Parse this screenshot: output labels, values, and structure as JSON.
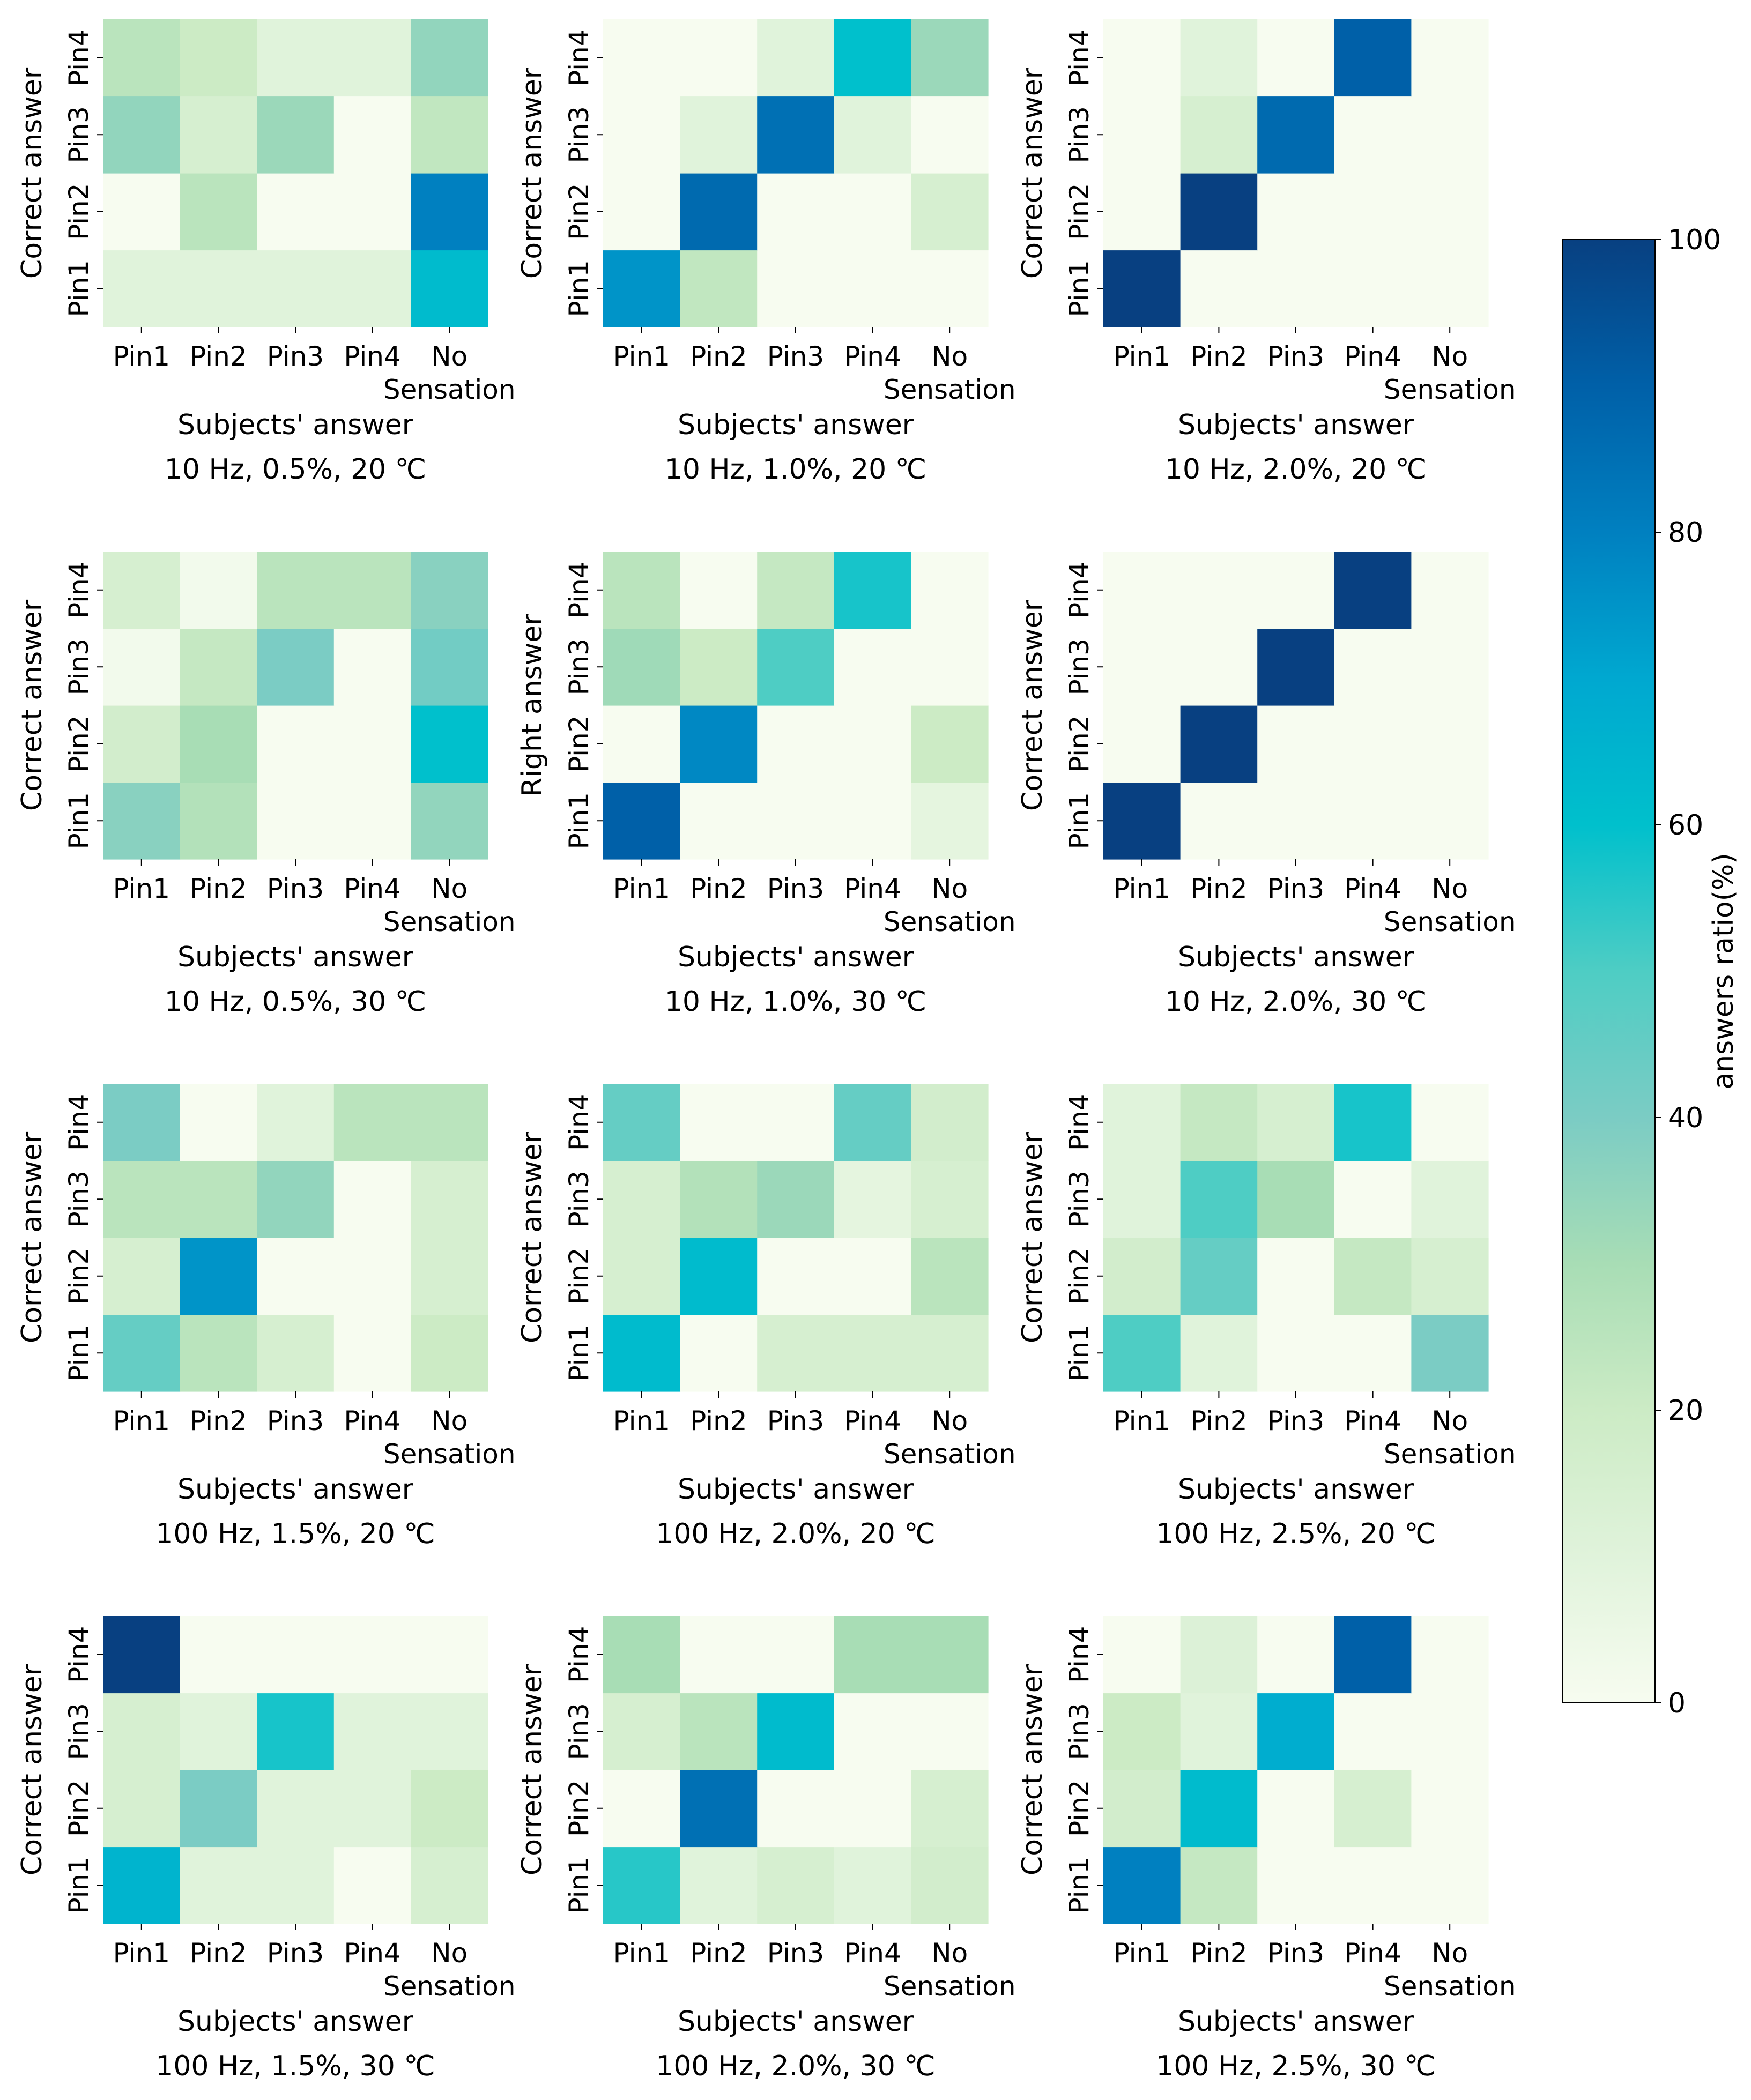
{
  "chart_data": {
    "type": "heatmap",
    "value_range": [
      0,
      100
    ],
    "colorscale": [
      "#f7fcf0",
      "#e0f3db",
      "#ccebc5",
      "#a8ddb5",
      "#7bccc4",
      "#4ecdc4",
      "#00c0cc",
      "#00a8d0",
      "#0080c0",
      "#0060a8",
      "#084081"
    ],
    "colorbar": {
      "label": "answers ratio(%)",
      "ticks": [
        0,
        20,
        40,
        60,
        80,
        100
      ]
    },
    "x_categories": [
      "Pin1",
      "Pin2",
      "Pin3",
      "Pin4",
      "No\nSensation"
    ],
    "y_categories": [
      "Pin1",
      "Pin2",
      "Pin3",
      "Pin4"
    ],
    "panels": [
      {
        "title": "10 Hz, 0.5%, 20 ℃",
        "xlabel": "Subjects' answer",
        "ylabel": "Correct answer",
        "values": [
          [
            10,
            10,
            10,
            10,
            62
          ],
          [
            0,
            25,
            0,
            0,
            80
          ],
          [
            35,
            15,
            33,
            0,
            23
          ],
          [
            25,
            20,
            10,
            10,
            35
          ]
        ]
      },
      {
        "title": "10 Hz, 1.0%, 20 ℃",
        "xlabel": "Subjects' answer",
        "ylabel": "Correct answer",
        "values": [
          [
            75,
            23,
            0,
            0,
            0
          ],
          [
            0,
            87,
            0,
            0,
            15
          ],
          [
            0,
            10,
            85,
            10,
            0
          ],
          [
            0,
            0,
            10,
            60,
            33
          ]
        ]
      },
      {
        "title": "10 Hz, 2.0%, 20 ℃",
        "xlabel": "Subjects' answer",
        "ylabel": "Correct answer",
        "values": [
          [
            100,
            0,
            0,
            0,
            0
          ],
          [
            0,
            100,
            0,
            0,
            0
          ],
          [
            0,
            15,
            87,
            0,
            0
          ],
          [
            0,
            10,
            0,
            90,
            0
          ]
        ]
      },
      {
        "title": "10 Hz, 0.5%, 30 ℃",
        "xlabel": "Subjects' answer",
        "ylabel": "Correct answer",
        "values": [
          [
            37,
            27,
            0,
            0,
            35
          ],
          [
            17,
            30,
            0,
            0,
            60
          ],
          [
            2,
            22,
            40,
            0,
            42
          ],
          [
            15,
            2,
            25,
            25,
            37
          ]
        ]
      },
      {
        "title": "10 Hz, 1.0%, 30 ℃",
        "xlabel": "Subjects' answer",
        "ylabel": "Right answer",
        "values": [
          [
            90,
            0,
            0,
            0,
            8
          ],
          [
            0,
            78,
            0,
            0,
            20
          ],
          [
            32,
            20,
            50,
            0,
            0
          ],
          [
            25,
            0,
            22,
            57,
            0
          ]
        ]
      },
      {
        "title": "10 Hz, 2.0%, 30 ℃",
        "xlabel": "Subjects' answer",
        "ylabel": "Correct answer",
        "values": [
          [
            100,
            0,
            0,
            0,
            0
          ],
          [
            0,
            100,
            0,
            0,
            0
          ],
          [
            0,
            0,
            100,
            0,
            0
          ],
          [
            0,
            0,
            0,
            100,
            0
          ]
        ]
      },
      {
        "title": "100 Hz, 1.5%, 20 ℃",
        "xlabel": "Subjects' answer",
        "ylabel": "Correct answer",
        "values": [
          [
            45,
            25,
            15,
            0,
            20
          ],
          [
            15,
            75,
            0,
            0,
            15
          ],
          [
            25,
            25,
            35,
            0,
            15
          ],
          [
            40,
            0,
            10,
            25,
            25
          ]
        ]
      },
      {
        "title": "100 Hz, 2.0%, 20 ℃",
        "xlabel": "Subjects' answer",
        "ylabel": "Correct answer",
        "values": [
          [
            62,
            0,
            15,
            15,
            15
          ],
          [
            15,
            62,
            0,
            0,
            25
          ],
          [
            15,
            27,
            33,
            8,
            15
          ],
          [
            45,
            0,
            0,
            45,
            17
          ]
        ]
      },
      {
        "title": "100 Hz, 2.5%, 20 ℃",
        "xlabel": "Subjects' answer",
        "ylabel": "Correct answer",
        "values": [
          [
            50,
            10,
            0,
            0,
            40
          ],
          [
            17,
            45,
            0,
            22,
            15
          ],
          [
            10,
            50,
            30,
            0,
            10
          ],
          [
            10,
            22,
            15,
            57,
            0
          ]
        ]
      },
      {
        "title": "100 Hz, 1.5%, 30 ℃",
        "xlabel": "Subjects' answer",
        "ylabel": "Correct answer",
        "values": [
          [
            65,
            10,
            10,
            0,
            15
          ],
          [
            15,
            40,
            10,
            10,
            20
          ],
          [
            15,
            10,
            57,
            10,
            10
          ],
          [
            100,
            0,
            0,
            0,
            0
          ]
        ]
      },
      {
        "title": "100 Hz, 2.0%, 30 ℃",
        "xlabel": "Subjects' answer",
        "ylabel": "Correct answer",
        "values": [
          [
            55,
            10,
            15,
            10,
            17
          ],
          [
            0,
            85,
            0,
            0,
            15
          ],
          [
            15,
            25,
            62,
            0,
            0
          ],
          [
            30,
            0,
            0,
            30,
            30
          ]
        ]
      },
      {
        "title": "100 Hz, 2.5%, 30 ℃",
        "xlabel": "Subjects' answer",
        "ylabel": "Correct answer",
        "values": [
          [
            80,
            22,
            0,
            0,
            0
          ],
          [
            17,
            62,
            0,
            15,
            0
          ],
          [
            20,
            10,
            68,
            0,
            0
          ],
          [
            0,
            12,
            0,
            90,
            0
          ]
        ]
      }
    ]
  }
}
